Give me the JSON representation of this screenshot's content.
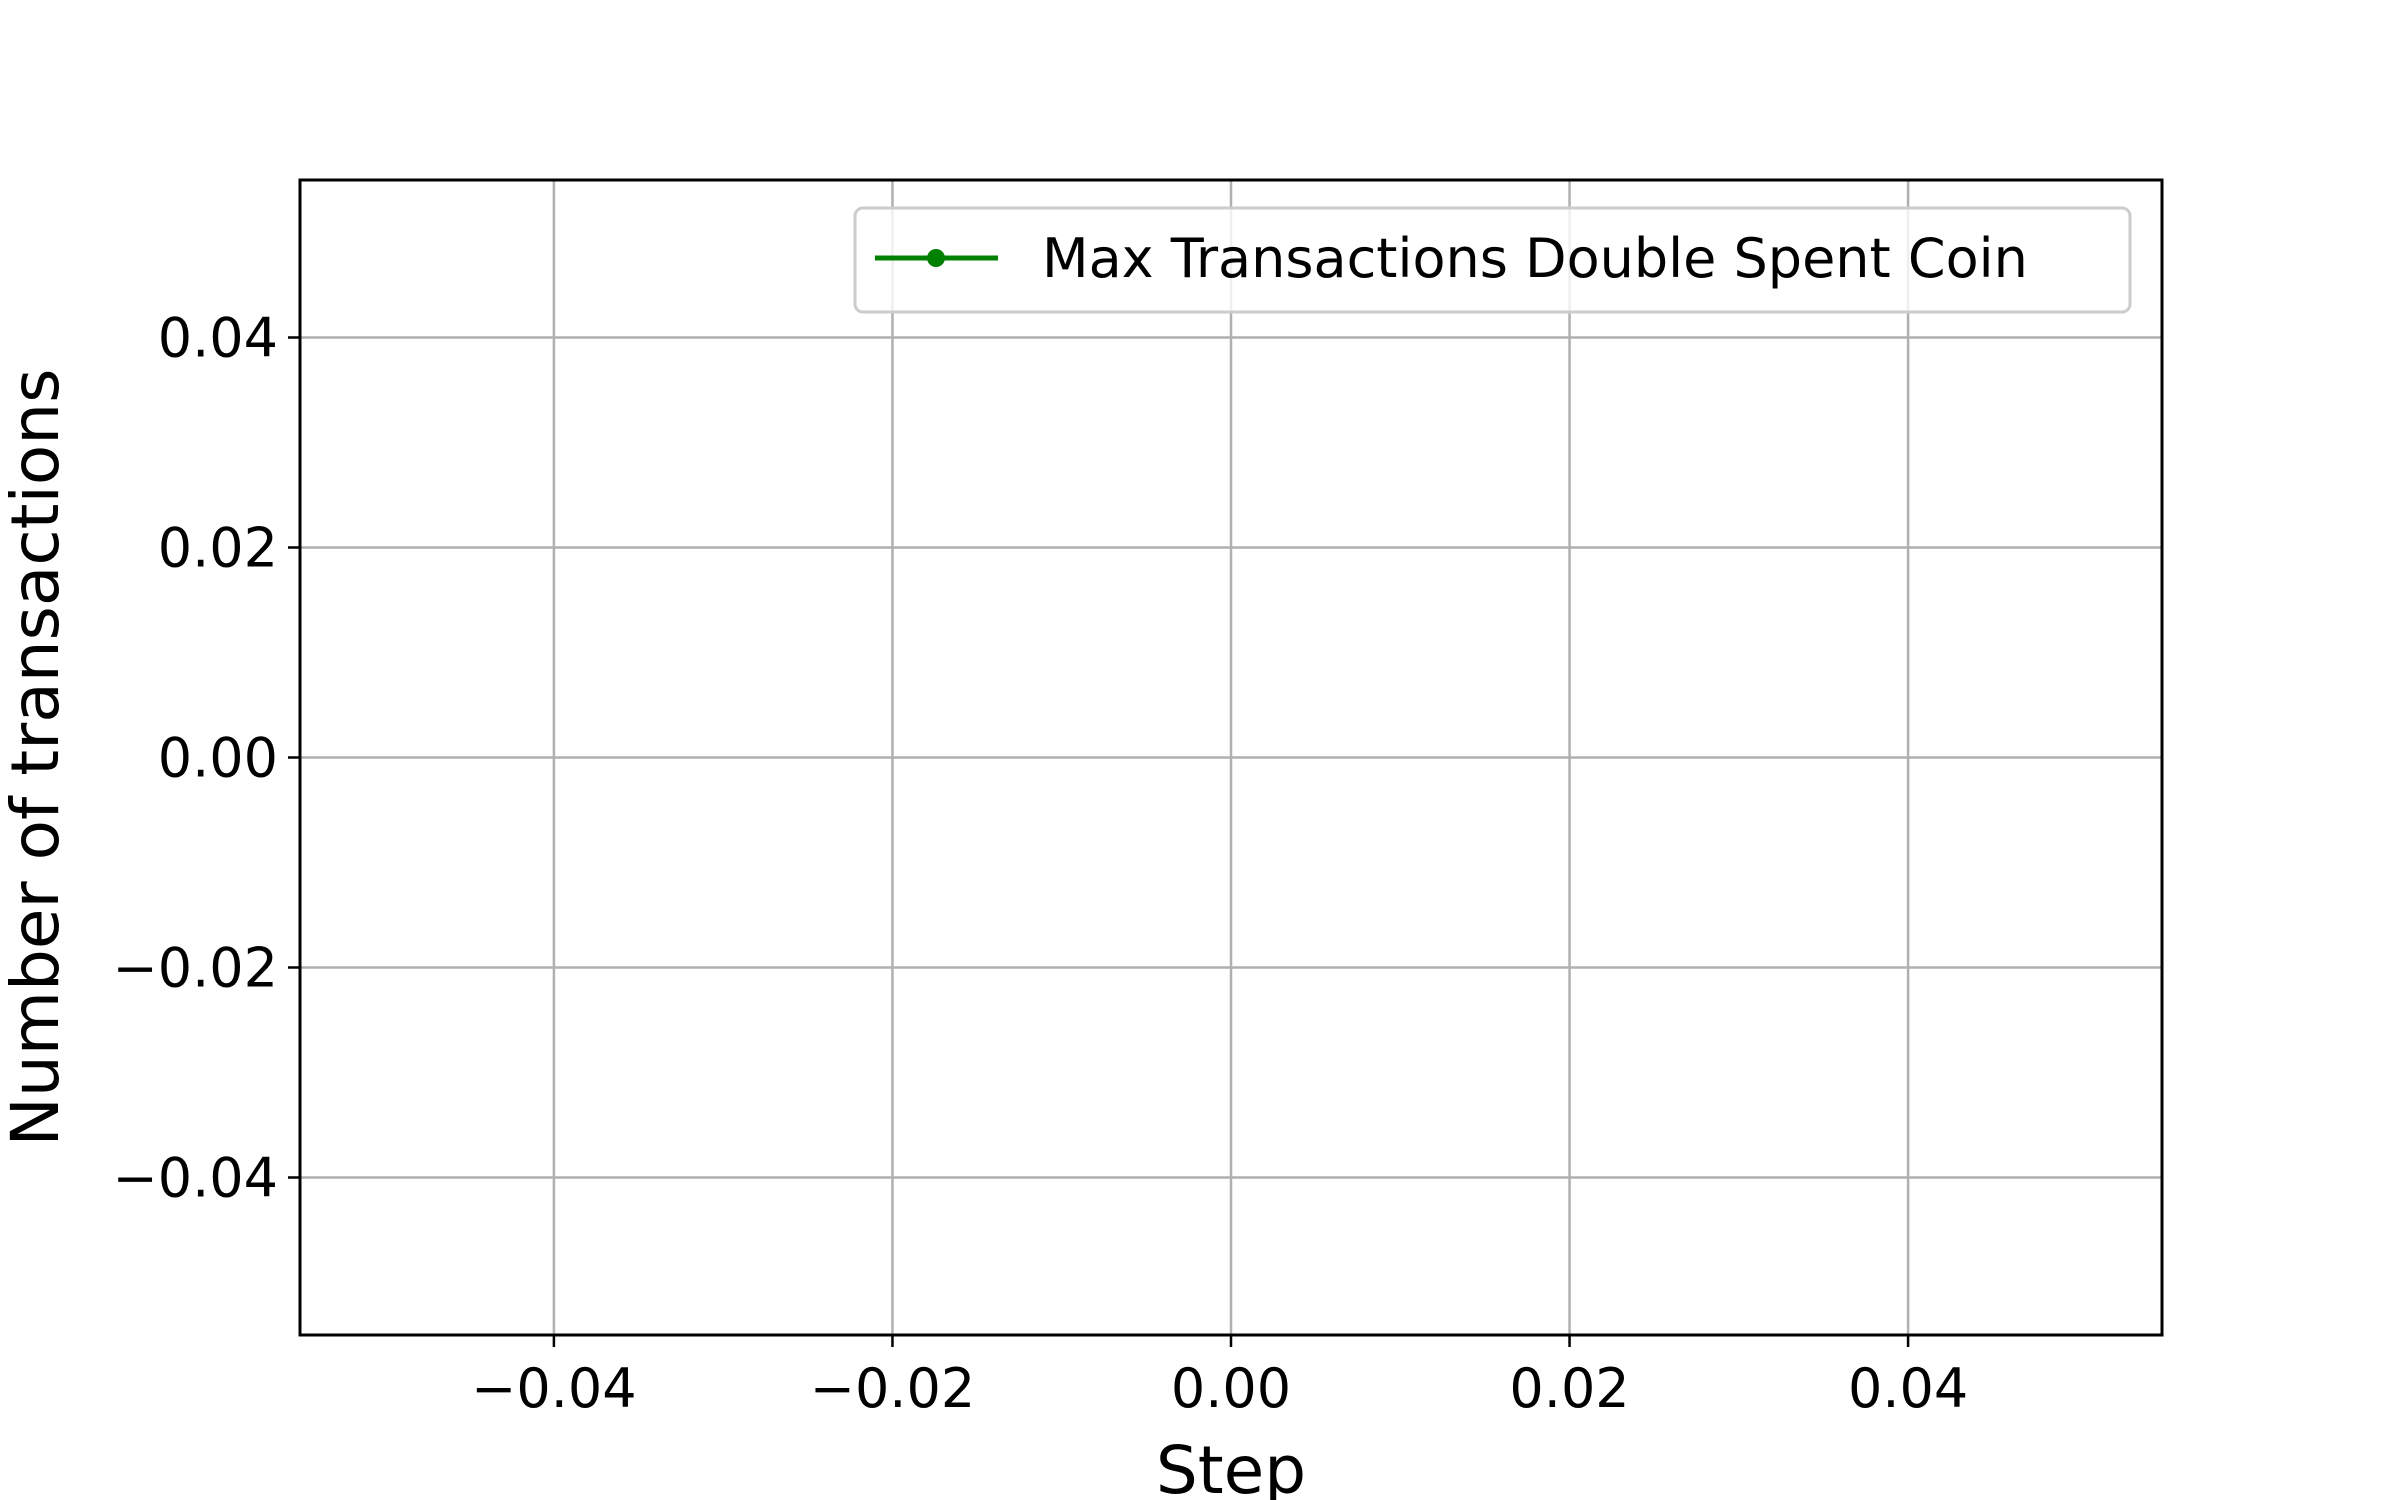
{
  "chart_data": {
    "type": "line",
    "title": "",
    "xlabel": "Step",
    "ylabel": "Number of transactions",
    "xlim": [
      -0.055,
      0.055
    ],
    "ylim": [
      -0.055,
      0.055
    ],
    "x_ticks": [
      -0.04,
      -0.02,
      0.0,
      0.02,
      0.04
    ],
    "x_tick_labels": [
      "−0.04",
      "−0.02",
      "0.00",
      "0.02",
      "0.04"
    ],
    "y_ticks": [
      -0.04,
      -0.02,
      0.0,
      0.02,
      0.04
    ],
    "y_tick_labels": [
      "−0.04",
      "−0.02",
      "0.00",
      "0.02",
      "0.04"
    ],
    "grid": true,
    "legend_position": "top-right",
    "series": [
      {
        "name": "Max Transactions Double Spent Coin",
        "color": "#008000",
        "marker": "circle",
        "x": [],
        "y": []
      }
    ]
  }
}
